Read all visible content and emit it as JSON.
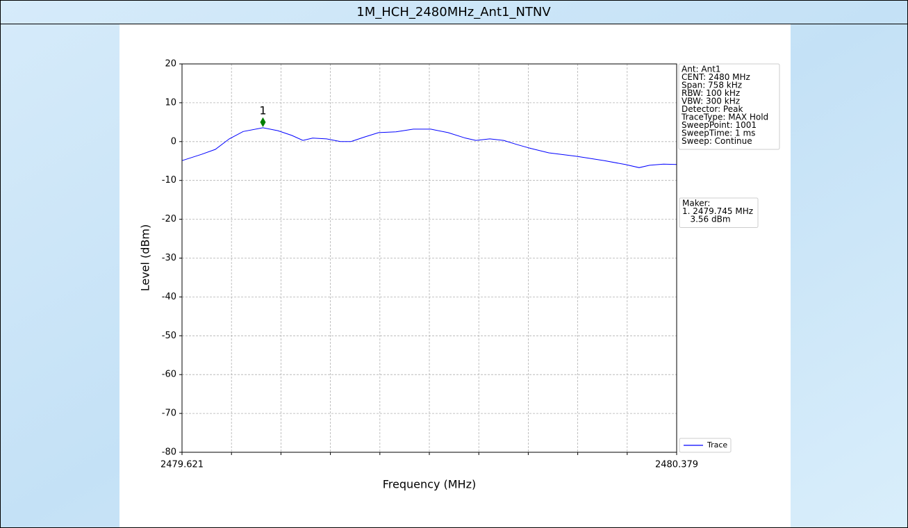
{
  "header": {
    "title": "1M_HCH_2480MHz_Ant1_NTNV"
  },
  "chart_data": {
    "type": "line",
    "xlabel": "Frequency (MHz)",
    "ylabel": "Level (dBm)",
    "xlim": [
      2479.621,
      2480.379
    ],
    "xticks": [
      2479.621,
      2480.379
    ],
    "xminor_ticks": [
      2479.6968,
      2479.7726,
      2479.8484,
      2479.9242,
      2480.0,
      2480.0758,
      2480.1516,
      2480.2274,
      2480.3032
    ],
    "ylim": [
      -80,
      20
    ],
    "yticks": [
      20,
      10,
      0,
      -10,
      -20,
      -30,
      -40,
      -50,
      -60,
      -70,
      -80
    ],
    "grid": true,
    "legend": "lower right",
    "series": [
      {
        "name": "Trace",
        "color": "#0000ff",
        "x": [
          2479.621,
          2479.6508,
          2479.6721,
          2479.6934,
          2479.7147,
          2479.745,
          2479.7679,
          2479.7892,
          2479.8062,
          2479.8211,
          2479.8424,
          2479.8637,
          2479.8797,
          2479.901,
          2479.9223,
          2479.9489,
          2479.9755,
          2480.0021,
          2480.0287,
          2480.0554,
          2480.0713,
          2480.0926,
          2480.1139,
          2480.1352,
          2480.1565,
          2480.1831,
          2480.2257,
          2480.2683,
          2480.3002,
          2480.3215,
          2480.3375,
          2480.3588,
          2480.379
        ],
        "values": [
          -4.9,
          -3.3,
          -2.0,
          0.7,
          2.6,
          3.56,
          2.8,
          1.6,
          0.3,
          0.9,
          0.7,
          0.0,
          0.0,
          1.2,
          2.3,
          2.5,
          3.2,
          3.2,
          2.3,
          0.9,
          0.3,
          0.7,
          0.3,
          -0.8,
          -1.8,
          -2.9,
          -3.8,
          -4.9,
          -5.9,
          -6.7,
          -6.1,
          -5.8,
          -5.9
        ]
      }
    ],
    "marker": {
      "label": "1",
      "x": 2479.745,
      "y": 3.56,
      "color": "#008000"
    },
    "settings": [
      "Ant: Ant1",
      "CENT: 2480 MHz",
      "Span: 758 kHz",
      "RBW: 100 kHz",
      "VBW: 300 kHz",
      "Detector: Peak",
      "TraceType: MAX Hold",
      "SweepPoint: 1001",
      "SweepTime: 1 ms",
      "Sweep: Continue"
    ],
    "marker_info": [
      "Maker:",
      "1. 2479.745 MHz",
      "   3.56 dBm"
    ]
  }
}
